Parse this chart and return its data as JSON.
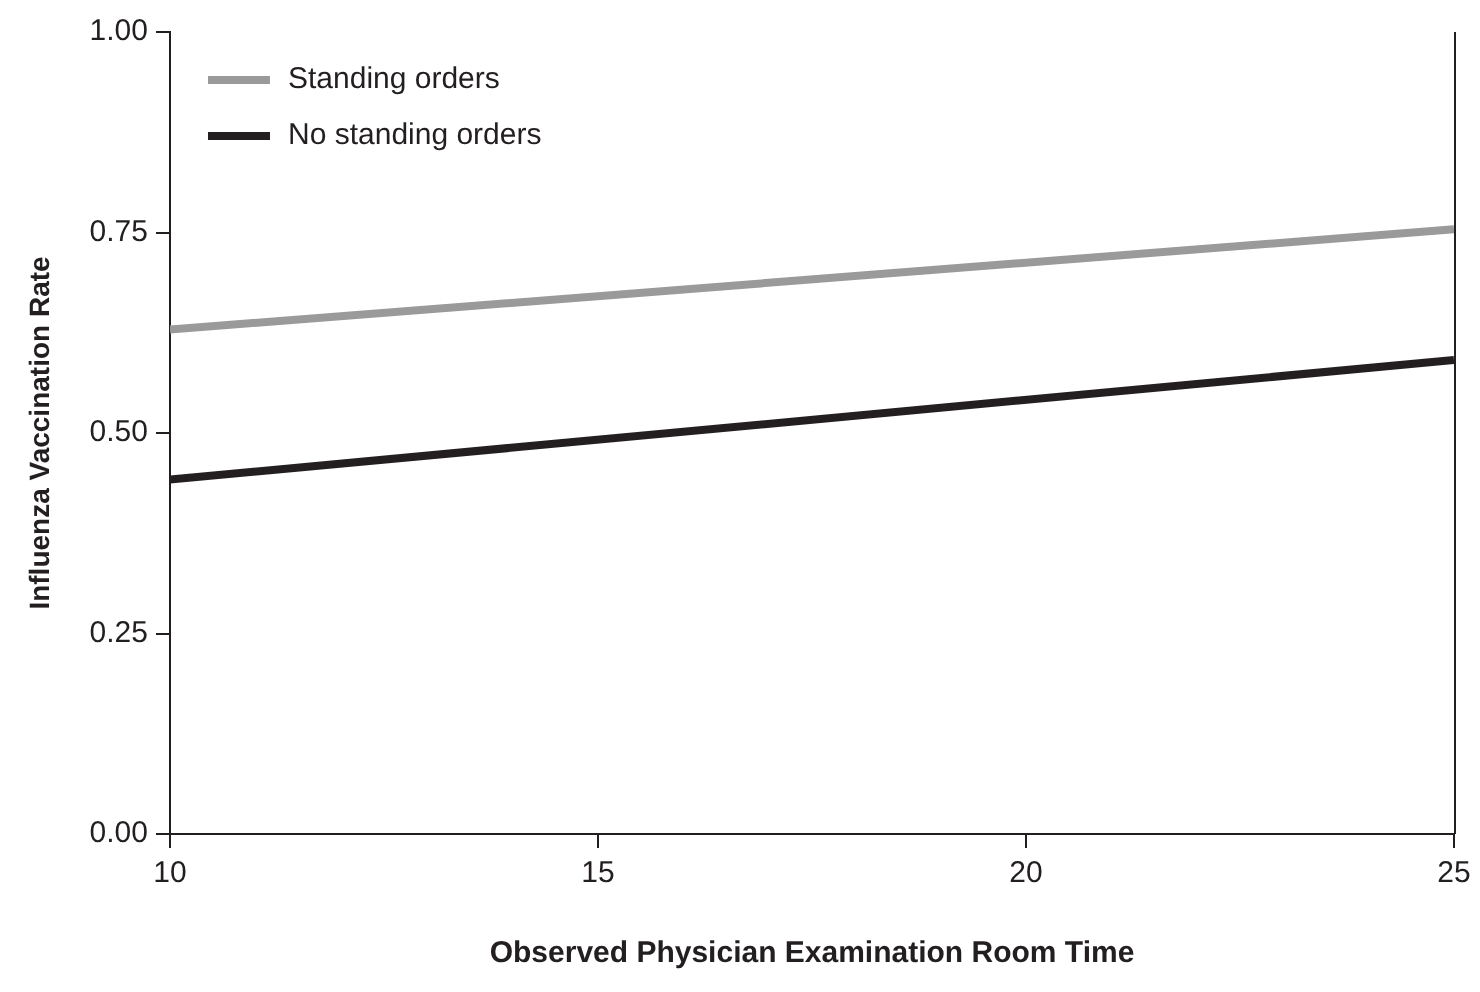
{
  "chart_data": {
    "type": "line",
    "xlabel": "Observed Physician Examination Room Time",
    "ylabel": "Influenza Vaccination Rate",
    "x": [
      10,
      25
    ],
    "series": [
      {
        "name": "Standing orders",
        "color": "#9a9a9a",
        "values": [
          0.629,
          0.754
        ]
      },
      {
        "name": "No standing orders",
        "color": "#231f20",
        "values": [
          0.442,
          0.591
        ]
      }
    ],
    "xlim": [
      10,
      25
    ],
    "xticks": [
      10,
      15,
      20,
      25
    ],
    "ylim": [
      0,
      1
    ],
    "yticks": [
      {
        "value": 0,
        "label": "0.00"
      },
      {
        "value": 0.25,
        "label": "0.25"
      },
      {
        "value": 0.5,
        "label": "0.50"
      },
      {
        "value": 0.75,
        "label": "0.75"
      },
      {
        "value": 1,
        "label": "1.00"
      }
    ],
    "grid": false,
    "legend": "top left",
    "marker": "none",
    "line_style": "solid"
  }
}
